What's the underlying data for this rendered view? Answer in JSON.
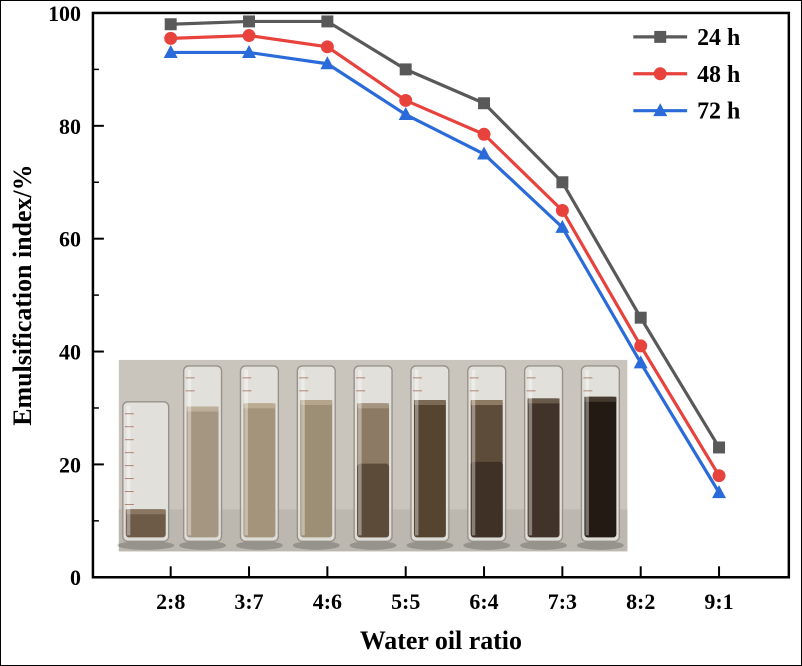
{
  "chart_data": {
    "type": "line",
    "title": "",
    "xlabel": "Water oil ratio",
    "ylabel": "Emulsification index/%",
    "categories": [
      "2:8",
      "3:7",
      "4:6",
      "5:5",
      "6:4",
      "7:3",
      "8:2",
      "9:1"
    ],
    "ylim": [
      0,
      100
    ],
    "yticks": [
      0,
      20,
      40,
      60,
      80,
      100
    ],
    "yminor_step": 10,
    "grid": false,
    "legend_position": "top-right",
    "series": [
      {
        "name": "24 h",
        "marker": "square",
        "color": "#595959",
        "values": [
          98,
          98.5,
          98.5,
          90,
          84,
          70,
          46,
          23
        ]
      },
      {
        "name": "48 h",
        "marker": "circle",
        "color": "#e8423d",
        "values": [
          95.5,
          96,
          94,
          84.5,
          78.5,
          65,
          41,
          18
        ]
      },
      {
        "name": "72 h",
        "marker": "triangle",
        "color": "#2b6bd9",
        "values": [
          93,
          93,
          91,
          82,
          75,
          62,
          38,
          15
        ]
      }
    ]
  },
  "inset": {
    "description": "photo of nine graduated cylinders holding emulsion samples, darkening from left (2:8) to right (9:1)",
    "tubes": [
      {
        "wide": true,
        "liquid": "#6e5b47",
        "surface": "#8a7763",
        "fill": 0.22
      },
      {
        "liquid": "#a59681",
        "surface": "#bcae99",
        "fill": 0.8
      },
      {
        "liquid": "#a3947b",
        "surface": "#baab92",
        "fill": 0.82
      },
      {
        "liquid": "#9d8e76",
        "surface": "#b4a58c",
        "fill": 0.84
      },
      {
        "liquid": "#8c7a64",
        "surface": "#a59580",
        "fill": 0.82,
        "lower": "#5d4b3a"
      },
      {
        "liquid": "#55442f",
        "surface": "#7b6a55",
        "fill": 0.84
      },
      {
        "liquid": "#5e4c3a",
        "surface": "#8d7b64",
        "fill": 0.84,
        "lower": "#3f3126"
      },
      {
        "liquid": "#41332a",
        "surface": "#6a5a49",
        "fill": 0.85
      },
      {
        "liquid": "#221a13",
        "surface": "#463a2e",
        "fill": 0.86
      }
    ]
  }
}
